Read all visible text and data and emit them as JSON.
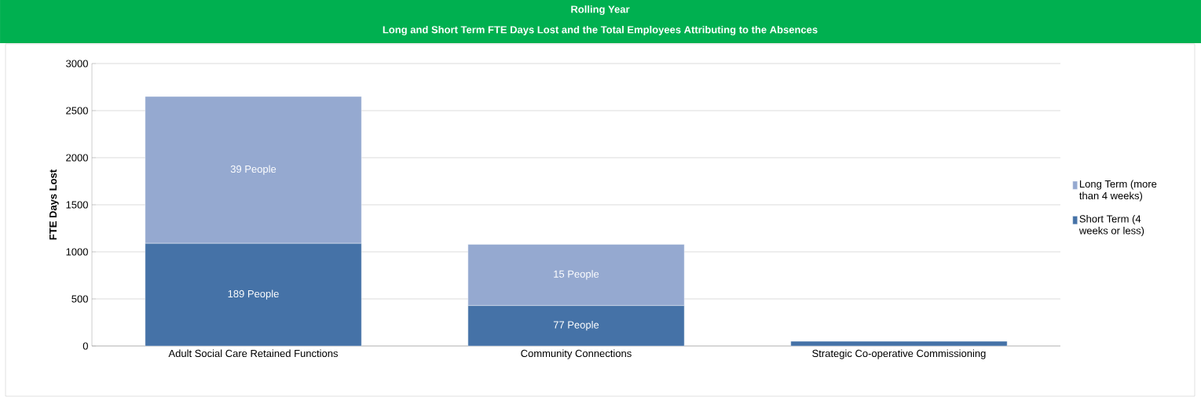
{
  "chart_data": {
    "type": "bar",
    "title": "Rolling Year",
    "subtitle": "Long and Short Term FTE Days Lost and the Total Employees Attributing to the Absences",
    "ylabel": "FTE Days Lost",
    "categories": [
      "Adult Social Care Retained Functions",
      "Community Connections",
      "Strategic Co-operative Commissioning"
    ],
    "stacked": true,
    "series": [
      {
        "name": "Short Term (4 weeks or less)",
        "color": "#4572a7",
        "values": [
          1090,
          430,
          50
        ]
      },
      {
        "name": "Long Term (more than 4 weeks)",
        "color": "#95a9d0",
        "values": [
          1560,
          650,
          0
        ]
      }
    ],
    "annotations": [
      "189 People",
      "39 People",
      "77 People",
      "15 People"
    ],
    "ylim": [
      0,
      3000
    ],
    "yticks": [
      0,
      500,
      1000,
      1500,
      2000,
      2500,
      3000
    ],
    "grid": "y",
    "legend": "right"
  }
}
